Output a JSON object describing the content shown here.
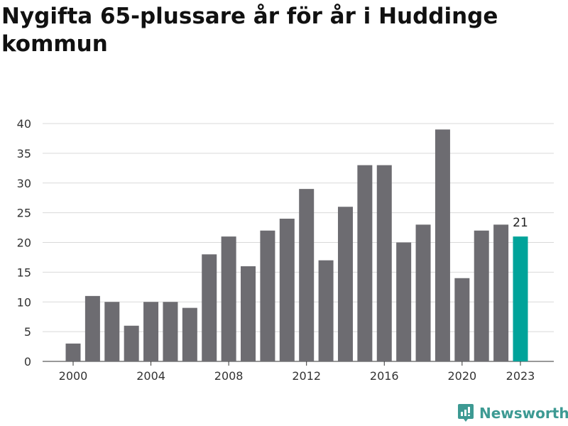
{
  "chart_data": {
    "type": "bar",
    "title": "Nygifta 65-plussare år för år i Huddinge kommun",
    "categories": [
      "2000",
      "2001",
      "2002",
      "2003",
      "2004",
      "2005",
      "2006",
      "2007",
      "2008",
      "2009",
      "2010",
      "2011",
      "2012",
      "2013",
      "2014",
      "2015",
      "2016",
      "2017",
      "2018",
      "2019",
      "2020",
      "2021",
      "2022",
      "2023"
    ],
    "values": [
      3,
      11,
      10,
      6,
      10,
      10,
      9,
      18,
      21,
      16,
      22,
      24,
      29,
      17,
      26,
      33,
      33,
      20,
      23,
      39,
      14,
      22,
      23,
      21
    ],
    "x_tick_labels": [
      "2000",
      "2004",
      "2008",
      "2012",
      "2016",
      "2020",
      "2023"
    ],
    "y_ticks": [
      0,
      5,
      10,
      15,
      20,
      25,
      30,
      35,
      40
    ],
    "ylim": [
      0,
      40
    ],
    "grid": true,
    "highlight": {
      "category": "2023",
      "label": "21"
    },
    "colors": {
      "bar": "#6d6c71",
      "highlight": "#00a39a"
    }
  },
  "brand": "Newsworthy"
}
